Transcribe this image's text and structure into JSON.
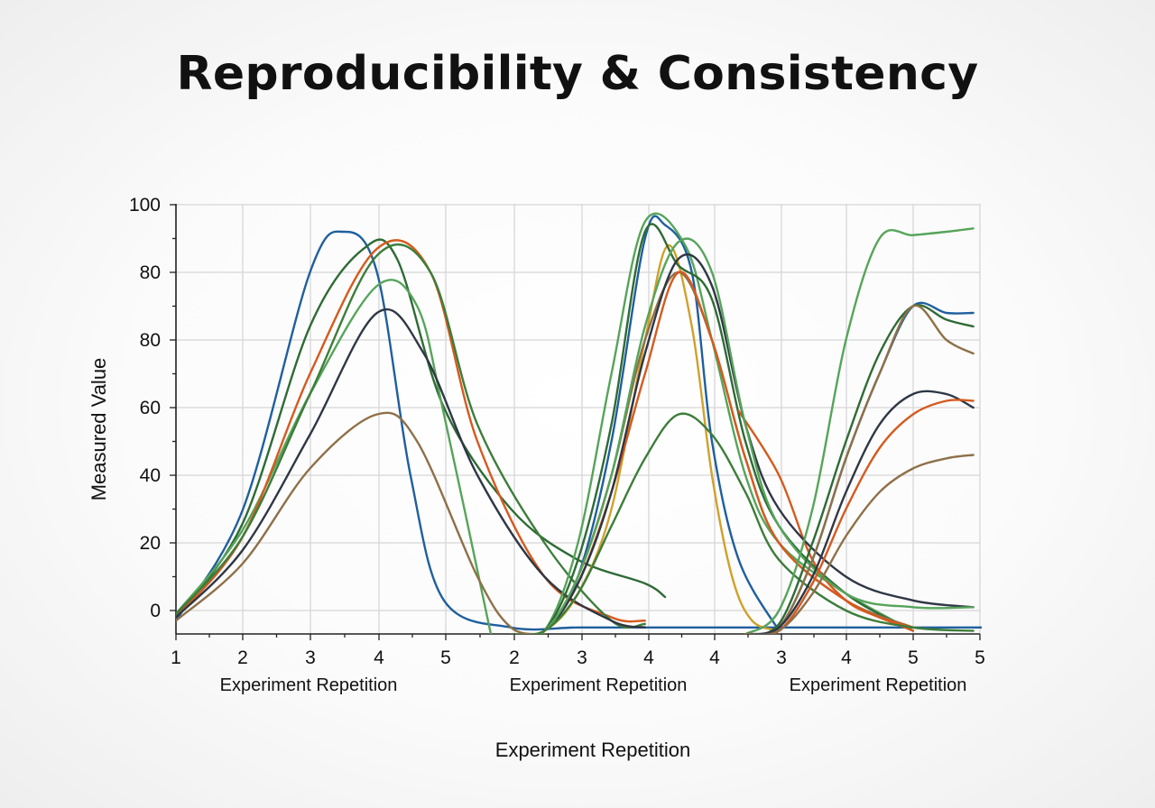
{
  "chart_data": {
    "type": "line",
    "title": "Reproducibility & Consistency",
    "ylabel": "Measured Value",
    "xlabel": "Experiment Repetition",
    "panel_xlabels": [
      "Experiment Repetition",
      "Experiment Repetition",
      "Experiment Repetition"
    ],
    "y_tick_labels": [
      "0",
      "20",
      "40",
      "60",
      "80",
      "80",
      "100"
    ],
    "x_tick_labels": [
      "1",
      "2",
      "3",
      "4",
      "5",
      "2",
      "3",
      "4",
      "4",
      "3",
      "4",
      "5",
      "5"
    ],
    "ylim": [
      -7,
      100
    ],
    "grid": true,
    "legend": "none",
    "series": [
      {
        "color": "#1f5f9e",
        "points": [
          [
            1,
            -3
          ],
          [
            2,
            30
          ],
          [
            3,
            80
          ],
          [
            3.5,
            92
          ],
          [
            4,
            80
          ],
          [
            4.5,
            40
          ],
          [
            5,
            3
          ],
          [
            6,
            -5
          ],
          [
            7,
            -5
          ],
          [
            8,
            -5
          ],
          [
            9,
            -5
          ],
          [
            10,
            -5
          ],
          [
            11,
            -5
          ],
          [
            12,
            -5
          ],
          [
            13,
            -5
          ],
          [
            14,
            -5
          ],
          [
            15,
            -5
          ],
          [
            16,
            -5
          ],
          [
            17,
            -5
          ],
          [
            18,
            -5
          ],
          [
            19,
            -5
          ],
          [
            20,
            -5
          ],
          [
            21,
            -5
          ],
          [
            22,
            -6
          ],
          [
            23,
            -6
          ],
          [
            24,
            -6
          ],
          [
            25,
            -6
          ],
          [
            26,
            -6
          ],
          [
            27,
            -6
          ],
          [
            28,
            -6
          ],
          [
            29,
            -6
          ],
          [
            30,
            -6
          ],
          [
            31,
            -6
          ]
        ]
      },
      {
        "color": "#2e6b35",
        "points": [
          [
            1,
            -2
          ],
          [
            2,
            26
          ],
          [
            3,
            72
          ],
          [
            3.8,
            87
          ],
          [
            4.3,
            84
          ],
          [
            5,
            60
          ],
          [
            6,
            30
          ],
          [
            7,
            15
          ],
          [
            8,
            8
          ],
          [
            8.3,
            4
          ]
        ]
      },
      {
        "color": "#56a45a",
        "points": [
          [
            1,
            -1
          ],
          [
            2,
            24
          ],
          [
            3,
            62
          ],
          [
            4,
            78
          ],
          [
            4.6,
            75
          ],
          [
            5,
            58
          ],
          [
            5.7,
            -7
          ]
        ]
      },
      {
        "color": "#d55a1f",
        "points": [
          [
            1,
            -2
          ],
          [
            2,
            22
          ],
          [
            3,
            65
          ],
          [
            4,
            87
          ],
          [
            4.8,
            80
          ],
          [
            5.5,
            50
          ],
          [
            6.5,
            10
          ],
          [
            7.5,
            -2
          ],
          [
            8,
            -3
          ]
        ]
      },
      {
        "color": "#3d7d3a",
        "points": [
          [
            1,
            -1
          ],
          [
            2,
            22
          ],
          [
            3,
            62
          ],
          [
            4,
            85
          ],
          [
            4.8,
            80
          ],
          [
            5.5,
            55
          ],
          [
            6.5,
            20
          ],
          [
            7.5,
            -3
          ],
          [
            8,
            -4
          ]
        ]
      },
      {
        "color": "#2f3745",
        "points": [
          [
            1,
            -2
          ],
          [
            2,
            18
          ],
          [
            3,
            52
          ],
          [
            4,
            74
          ],
          [
            4.7,
            68
          ],
          [
            5.5,
            40
          ],
          [
            6.5,
            10
          ],
          [
            7.5,
            -3
          ],
          [
            8,
            -5
          ]
        ]
      },
      {
        "color": "#8e7048",
        "points": [
          [
            1,
            -3
          ],
          [
            2,
            14
          ],
          [
            3,
            42
          ],
          [
            4,
            58
          ],
          [
            4.6,
            50
          ],
          [
            5.5,
            10
          ],
          [
            6,
            -5
          ],
          [
            6.5,
            -7
          ]
        ]
      },
      {
        "color": "#d1a02c",
        "points": [
          [
            6,
            -7
          ],
          [
            6.5,
            -6
          ],
          [
            7,
            5
          ],
          [
            7.5,
            30
          ],
          [
            8,
            70
          ],
          [
            8.35,
            88
          ],
          [
            8.7,
            72
          ],
          [
            9,
            40
          ],
          [
            9.3,
            10
          ],
          [
            9.6,
            -3
          ],
          [
            10,
            -6
          ]
        ]
      },
      {
        "color": "#1f5f9e",
        "points": [
          [
            6,
            -7
          ],
          [
            6.5,
            -6
          ],
          [
            7,
            10
          ],
          [
            7.5,
            50
          ],
          [
            8,
            90
          ],
          [
            8.3,
            94
          ],
          [
            8.7,
            80
          ],
          [
            9,
            50
          ],
          [
            9.4,
            15
          ],
          [
            10,
            -6
          ]
        ]
      },
      {
        "color": "#56a45a",
        "points": [
          [
            6,
            -7
          ],
          [
            6.5,
            -6
          ],
          [
            7,
            20
          ],
          [
            7.5,
            65
          ],
          [
            8,
            95
          ],
          [
            8.6,
            88
          ],
          [
            9,
            70
          ],
          [
            9.5,
            40
          ],
          [
            10,
            20
          ],
          [
            11,
            5
          ],
          [
            12,
            -6
          ]
        ]
      },
      {
        "color": "#2e6b35",
        "points": [
          [
            6,
            -7
          ],
          [
            6.5,
            -6
          ],
          [
            7,
            15
          ],
          [
            7.5,
            55
          ],
          [
            8,
            92
          ],
          [
            8.5,
            82
          ],
          [
            9,
            76
          ],
          [
            9.5,
            50
          ],
          [
            10,
            25
          ],
          [
            11,
            5
          ],
          [
            12,
            -6
          ]
        ]
      },
      {
        "color": "#8e7048",
        "points": [
          [
            6,
            -7
          ],
          [
            6.5,
            -6
          ],
          [
            7,
            10
          ],
          [
            7.5,
            40
          ],
          [
            8,
            70
          ],
          [
            8.5,
            80
          ],
          [
            9,
            70
          ],
          [
            9.5,
            45
          ],
          [
            10,
            20
          ],
          [
            11,
            3
          ],
          [
            12,
            -5
          ]
        ]
      },
      {
        "color": "#d55a1f",
        "points": [
          [
            6,
            -7
          ],
          [
            6.5,
            -6
          ],
          [
            7,
            8
          ],
          [
            7.5,
            35
          ],
          [
            8,
            65
          ],
          [
            8.5,
            80
          ],
          [
            9,
            70
          ],
          [
            9.5,
            45
          ],
          [
            10,
            20
          ],
          [
            11,
            3
          ],
          [
            12,
            -6
          ]
        ]
      },
      {
        "color": "#d55a1f",
        "points": [
          [
            9.4,
            59
          ],
          [
            10,
            40
          ],
          [
            10.5,
            15
          ],
          [
            11,
            3
          ],
          [
            11.5,
            -2
          ],
          [
            12,
            -5
          ]
        ]
      },
      {
        "color": "#2f3745",
        "points": [
          [
            6,
            -7
          ],
          [
            6.5,
            -6
          ],
          [
            7,
            8
          ],
          [
            7.5,
            35
          ],
          [
            8,
            68
          ],
          [
            8.5,
            84
          ],
          [
            9,
            78
          ],
          [
            9.5,
            55
          ],
          [
            10,
            30
          ],
          [
            11,
            10
          ],
          [
            12,
            3
          ],
          [
            12.9,
            1
          ]
        ]
      },
      {
        "color": "#56a45a",
        "points": [
          [
            6,
            -7
          ],
          [
            6.5,
            -6
          ],
          [
            7,
            10
          ],
          [
            7.5,
            40
          ],
          [
            8,
            72
          ],
          [
            8.5,
            89
          ],
          [
            9,
            80
          ],
          [
            9.5,
            55
          ],
          [
            10,
            25
          ],
          [
            11,
            5
          ],
          [
            12,
            1
          ],
          [
            12.9,
            1
          ]
        ]
      },
      {
        "color": "#3d7d3a",
        "points": [
          [
            6,
            -7
          ],
          [
            6.5,
            -6
          ],
          [
            7,
            5
          ],
          [
            7.5,
            25
          ],
          [
            8,
            45
          ],
          [
            8.5,
            58
          ],
          [
            9,
            52
          ],
          [
            9.5,
            35
          ],
          [
            10,
            15
          ],
          [
            11,
            0
          ],
          [
            12,
            -5
          ],
          [
            12.9,
            -6
          ]
        ]
      },
      {
        "color": "#56a45a",
        "points": [
          [
            9.5,
            -7
          ],
          [
            10,
            0
          ],
          [
            10.5,
            30
          ],
          [
            11,
            70
          ],
          [
            11.5,
            90
          ],
          [
            12,
            91
          ],
          [
            12.5,
            92
          ],
          [
            12.9,
            93
          ]
        ]
      },
      {
        "color": "#1f5f9e",
        "points": [
          [
            9.5,
            -7
          ],
          [
            10,
            -5
          ],
          [
            10.5,
            15
          ],
          [
            11,
            45
          ],
          [
            11.5,
            65
          ],
          [
            12,
            75
          ],
          [
            12.5,
            74
          ],
          [
            12.9,
            74
          ]
        ]
      },
      {
        "color": "#2e6b35",
        "points": [
          [
            9.5,
            -7
          ],
          [
            10,
            -4
          ],
          [
            10.5,
            20
          ],
          [
            11,
            50
          ],
          [
            11.5,
            68
          ],
          [
            12,
            75
          ],
          [
            12.5,
            73
          ],
          [
            12.9,
            72
          ]
        ]
      },
      {
        "color": "#8e7048",
        "points": [
          [
            9.5,
            -7
          ],
          [
            10,
            -5
          ],
          [
            10.5,
            15
          ],
          [
            11,
            45
          ],
          [
            11.5,
            65
          ],
          [
            12,
            75
          ],
          [
            12.5,
            70
          ],
          [
            12.9,
            68
          ]
        ]
      },
      {
        "color": "#2f3745",
        "points": [
          [
            9.5,
            -7
          ],
          [
            10,
            -5
          ],
          [
            10.5,
            10
          ],
          [
            11,
            35
          ],
          [
            11.5,
            55
          ],
          [
            12,
            62
          ],
          [
            12.5,
            62
          ],
          [
            12.9,
            60
          ]
        ]
      },
      {
        "color": "#d55a1f",
        "points": [
          [
            9.5,
            -7
          ],
          [
            10,
            -6
          ],
          [
            10.5,
            8
          ],
          [
            11,
            30
          ],
          [
            11.5,
            48
          ],
          [
            12,
            58
          ],
          [
            12.5,
            61
          ],
          [
            12.9,
            61
          ]
        ]
      },
      {
        "color": "#8e7048",
        "points": [
          [
            9.5,
            -7
          ],
          [
            10,
            -6
          ],
          [
            10.5,
            5
          ],
          [
            11,
            22
          ],
          [
            11.5,
            35
          ],
          [
            12,
            42
          ],
          [
            12.5,
            45
          ],
          [
            12.9,
            46
          ]
        ]
      }
    ]
  }
}
